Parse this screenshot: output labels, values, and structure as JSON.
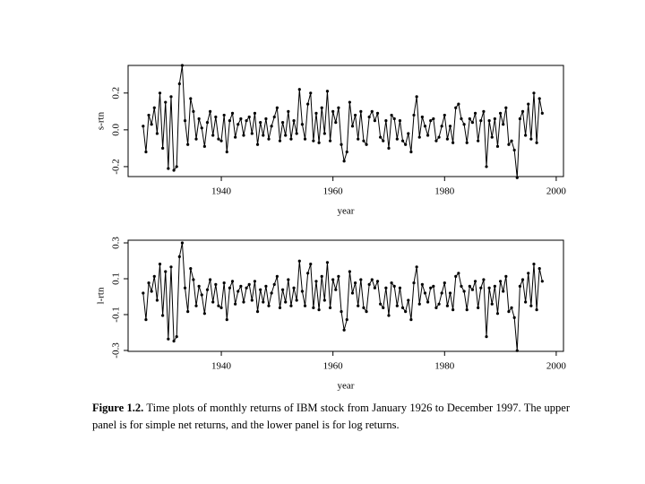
{
  "chart_data": [
    {
      "type": "line",
      "ylabel": "s-rtn",
      "xlabel": "year",
      "color": "#000000",
      "markers": true,
      "xlim": [
        1923.3,
        2001.3
      ],
      "xticks": [
        1940,
        1960,
        1980,
        2000
      ],
      "ylim": [
        -0.254,
        0.35
      ],
      "yticks": [
        {
          "value": -0.2,
          "label": "-0.2"
        },
        {
          "value": 0,
          "label": "0.0"
        },
        0.2
      ],
      "x": [
        1926,
        1926.5,
        1927,
        1927.5,
        1928,
        1928.5,
        1929,
        1929.5,
        1930,
        1930.5,
        1931,
        1931.5,
        1932,
        1932.5,
        1933,
        1933.5,
        1934,
        1934.5,
        1935,
        1935.5,
        1936,
        1936.5,
        1937,
        1937.5,
        1938,
        1938.5,
        1939,
        1939.5,
        1940,
        1940.5,
        1941,
        1941.5,
        1942,
        1942.5,
        1943,
        1943.5,
        1944,
        1944.5,
        1945,
        1945.5,
        1946,
        1946.5,
        1947,
        1947.5,
        1948,
        1948.5,
        1949,
        1949.5,
        1950,
        1950.5,
        1951,
        1951.5,
        1952,
        1952.5,
        1953,
        1953.5,
        1954,
        1954.5,
        1955,
        1955.5,
        1956,
        1956.5,
        1957,
        1957.5,
        1958,
        1958.5,
        1959,
        1959.5,
        1960,
        1960.5,
        1961,
        1961.5,
        1962,
        1962.5,
        1963,
        1963.5,
        1964,
        1964.5,
        1965,
        1965.5,
        1966,
        1966.5,
        1967,
        1967.5,
        1968,
        1968.5,
        1969,
        1969.5,
        1970,
        1970.5,
        1971,
        1971.5,
        1972,
        1972.5,
        1973,
        1973.5,
        1974,
        1974.5,
        1975,
        1975.5,
        1976,
        1976.5,
        1977,
        1977.5,
        1978,
        1978.5,
        1979,
        1979.5,
        1980,
        1980.5,
        1981,
        1981.5,
        1982,
        1982.5,
        1983,
        1983.5,
        1984,
        1984.5,
        1985,
        1985.5,
        1986,
        1986.5,
        1987,
        1987.5,
        1988,
        1988.5,
        1989,
        1989.5,
        1990,
        1990.5,
        1991,
        1991.5,
        1992,
        1992.5,
        1993,
        1993.5,
        1994,
        1994.5,
        1995,
        1995.5,
        1996,
        1996.5,
        1997,
        1997.5
      ],
      "values": [
        0.02,
        -0.12,
        0.08,
        0.03,
        0.12,
        -0.02,
        0.2,
        -0.1,
        0.15,
        -0.21,
        0.18,
        -0.22,
        -0.2,
        0.25,
        0.35,
        0.05,
        -0.08,
        0.17,
        0.1,
        -0.05,
        0.06,
        0.01,
        -0.09,
        0.04,
        0.1,
        -0.03,
        0.07,
        -0.05,
        -0.06,
        0.08,
        -0.12,
        0.05,
        0.09,
        -0.04,
        0.03,
        0.06,
        -0.03,
        0.05,
        0.07,
        -0.02,
        0.09,
        -0.08,
        0.04,
        -0.03,
        0.06,
        -0.05,
        0.02,
        0.07,
        0.12,
        -0.06,
        0.04,
        -0.03,
        0.1,
        -0.05,
        0.05,
        -0.02,
        0.22,
        0.03,
        -0.05,
        0.14,
        0.2,
        -0.06,
        0.09,
        -0.07,
        0.12,
        -0.02,
        0.21,
        -0.06,
        0.1,
        0.04,
        0.12,
        -0.08,
        -0.17,
        -0.12,
        0.15,
        0.02,
        0.08,
        -0.05,
        0.1,
        -0.06,
        -0.08,
        0.07,
        0.1,
        0.05,
        0.09,
        -0.04,
        -0.06,
        0.05,
        -0.1,
        0.08,
        0.06,
        -0.05,
        0.05,
        -0.06,
        -0.08,
        -0.02,
        -0.12,
        0.08,
        0.18,
        -0.04,
        0.07,
        0.02,
        -0.03,
        0.05,
        0.06,
        -0.06,
        -0.04,
        0.02,
        0.08,
        -0.05,
        0.02,
        -0.07,
        0.12,
        0.14,
        0.06,
        0.03,
        -0.07,
        0.06,
        0.04,
        0.09,
        -0.06,
        0.05,
        0.1,
        -0.2,
        0.05,
        -0.04,
        0.06,
        -0.09,
        0.09,
        0.03,
        0.12,
        -0.08,
        -0.06,
        -0.11,
        -0.26,
        0.06,
        0.1,
        -0.03,
        0.14,
        -0.05,
        0.2,
        -0.07,
        0.17,
        0.09
      ]
    },
    {
      "type": "line",
      "ylabel": "l-rtn",
      "xlabel": "year",
      "color": "#000000",
      "markers": true,
      "xlim": [
        1923.3,
        2001.3
      ],
      "xticks": [
        1940,
        1960,
        1980,
        2000
      ],
      "ylim": [
        -0.305,
        0.315
      ],
      "yticks": [
        -0.3,
        -0.1,
        0.1,
        0.3
      ],
      "x": [
        1926,
        1926.5,
        1927,
        1927.5,
        1928,
        1928.5,
        1929,
        1929.5,
        1930,
        1930.5,
        1931,
        1931.5,
        1932,
        1932.5,
        1933,
        1933.5,
        1934,
        1934.5,
        1935,
        1935.5,
        1936,
        1936.5,
        1937,
        1937.5,
        1938,
        1938.5,
        1939,
        1939.5,
        1940,
        1940.5,
        1941,
        1941.5,
        1942,
        1942.5,
        1943,
        1943.5,
        1944,
        1944.5,
        1945,
        1945.5,
        1946,
        1946.5,
        1947,
        1947.5,
        1948,
        1948.5,
        1949,
        1949.5,
        1950,
        1950.5,
        1951,
        1951.5,
        1952,
        1952.5,
        1953,
        1953.5,
        1954,
        1954.5,
        1955,
        1955.5,
        1956,
        1956.5,
        1957,
        1957.5,
        1958,
        1958.5,
        1959,
        1959.5,
        1960,
        1960.5,
        1961,
        1961.5,
        1962,
        1962.5,
        1963,
        1963.5,
        1964,
        1964.5,
        1965,
        1965.5,
        1966,
        1966.5,
        1967,
        1967.5,
        1968,
        1968.5,
        1969,
        1969.5,
        1970,
        1970.5,
        1971,
        1971.5,
        1972,
        1972.5,
        1973,
        1973.5,
        1974,
        1974.5,
        1975,
        1975.5,
        1976,
        1976.5,
        1977,
        1977.5,
        1978,
        1978.5,
        1979,
        1979.5,
        1980,
        1980.5,
        1981,
        1981.5,
        1982,
        1982.5,
        1983,
        1983.5,
        1984,
        1984.5,
        1985,
        1985.5,
        1986,
        1986.5,
        1987,
        1987.5,
        1988,
        1988.5,
        1989,
        1989.5,
        1990,
        1990.5,
        1991,
        1991.5,
        1992,
        1992.5,
        1993,
        1993.5,
        1994,
        1994.5,
        1995,
        1995.5,
        1996,
        1996.5,
        1997,
        1997.5
      ],
      "values": [
        0.02,
        -0.128,
        0.077,
        0.03,
        0.113,
        -0.02,
        0.182,
        -0.105,
        0.14,
        -0.236,
        0.166,
        -0.248,
        -0.223,
        0.223,
        0.3,
        0.049,
        -0.083,
        0.157,
        0.095,
        -0.051,
        0.058,
        0.01,
        -0.094,
        0.039,
        0.095,
        -0.03,
        0.068,
        -0.051,
        -0.062,
        0.077,
        -0.128,
        0.049,
        0.086,
        -0.041,
        0.03,
        0.058,
        -0.03,
        0.049,
        0.068,
        -0.02,
        0.086,
        -0.083,
        0.039,
        -0.03,
        0.058,
        -0.051,
        0.02,
        0.068,
        0.113,
        -0.062,
        0.039,
        -0.03,
        0.095,
        -0.051,
        0.049,
        -0.02,
        0.199,
        0.03,
        -0.051,
        0.131,
        0.182,
        -0.062,
        0.086,
        -0.073,
        0.113,
        -0.02,
        0.191,
        -0.062,
        0.095,
        0.039,
        0.113,
        -0.083,
        -0.186,
        -0.128,
        0.14,
        0.02,
        0.077,
        -0.051,
        0.095,
        -0.062,
        -0.083,
        0.068,
        0.095,
        0.049,
        0.086,
        -0.041,
        -0.062,
        0.049,
        -0.105,
        0.077,
        0.058,
        -0.051,
        0.049,
        -0.062,
        -0.083,
        -0.02,
        -0.128,
        0.077,
        0.166,
        -0.041,
        0.068,
        0.02,
        -0.03,
        0.049,
        0.058,
        -0.062,
        -0.041,
        0.02,
        0.077,
        -0.051,
        0.02,
        -0.073,
        0.113,
        0.131,
        0.058,
        0.03,
        -0.073,
        0.058,
        0.039,
        0.086,
        -0.062,
        0.049,
        0.095,
        -0.223,
        0.049,
        -0.041,
        0.058,
        -0.094,
        0.086,
        0.03,
        0.113,
        -0.083,
        -0.062,
        -0.117,
        -0.301,
        0.058,
        0.095,
        -0.03,
        0.131,
        -0.051,
        0.182,
        -0.073,
        0.157,
        0.086
      ]
    }
  ],
  "caption": {
    "label": "Figure 1.2.",
    "text": "Time plots of monthly returns of IBM stock from January 1926 to December 1997. The upper panel is for simple net returns, and the lower panel is for log returns."
  }
}
